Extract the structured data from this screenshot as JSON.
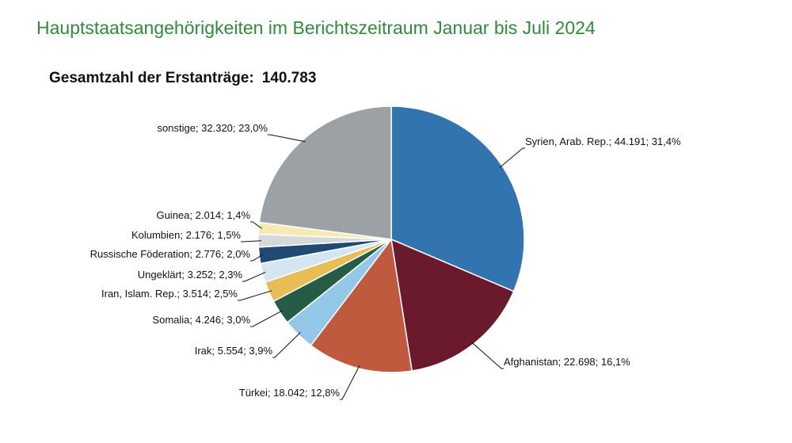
{
  "title": "Hauptstaatsangehörigkeiten im Berichtszeitraum Januar bis Juli 2024",
  "total": {
    "label": "Gesamtzahl der Erstanträge:",
    "value": "140.783"
  },
  "chart_data": {
    "type": "pie",
    "title": "Hauptstaatsangehörigkeiten im Berichtszeitraum Januar bis Juli 2024",
    "subtitle": "Gesamtzahl der Erstanträge: 140.783",
    "slices": [
      {
        "name": "Syrien, Arab. Rep.",
        "value": 44191,
        "percent": 31.4,
        "label": "Syrien, Arab. Rep.; 44.191; 31,4%",
        "color": "#3274b0"
      },
      {
        "name": "Afghanistan",
        "value": 22698,
        "percent": 16.1,
        "label": "Afghanistan; 22.698; 16,1%",
        "color": "#6b1a2d"
      },
      {
        "name": "Türkei",
        "value": 18042,
        "percent": 12.8,
        "label": "Türkei; 18.042; 12,8%",
        "color": "#c05a3f"
      },
      {
        "name": "Irak",
        "value": 5554,
        "percent": 3.9,
        "label": "Irak; 5.554; 3,9%",
        "color": "#93c8e8"
      },
      {
        "name": "Somalia",
        "value": 4246,
        "percent": 3.0,
        "label": "Somalia; 4.246; 3,0%",
        "color": "#245c45"
      },
      {
        "name": "Iran, Islam. Rep.",
        "value": 3514,
        "percent": 2.5,
        "label": "Iran, Islam. Rep.; 3.514; 2,5%",
        "color": "#e9bd55"
      },
      {
        "name": "Ungeklärt",
        "value": 3252,
        "percent": 2.3,
        "label": "Ungeklärt; 3.252; 2,3%",
        "color": "#d4e6f1"
      },
      {
        "name": "Russische Föderation",
        "value": 2776,
        "percent": 2.0,
        "label": "Russische Föderation; 2.776; 2,0%",
        "color": "#1f4a73"
      },
      {
        "name": "Kolumbien",
        "value": 2176,
        "percent": 1.5,
        "label": "Kolumbien; 2.176; 1,5%",
        "color": "#d6d9dc"
      },
      {
        "name": "Guinea",
        "value": 2014,
        "percent": 1.4,
        "label": "Guinea; 2.014; 1,4%",
        "color": "#f6eab2"
      },
      {
        "name": "sonstige",
        "value": 32320,
        "percent": 23.0,
        "label": "sonstige; 32.320; 23,0%",
        "color": "#9ba1a5"
      }
    ]
  }
}
